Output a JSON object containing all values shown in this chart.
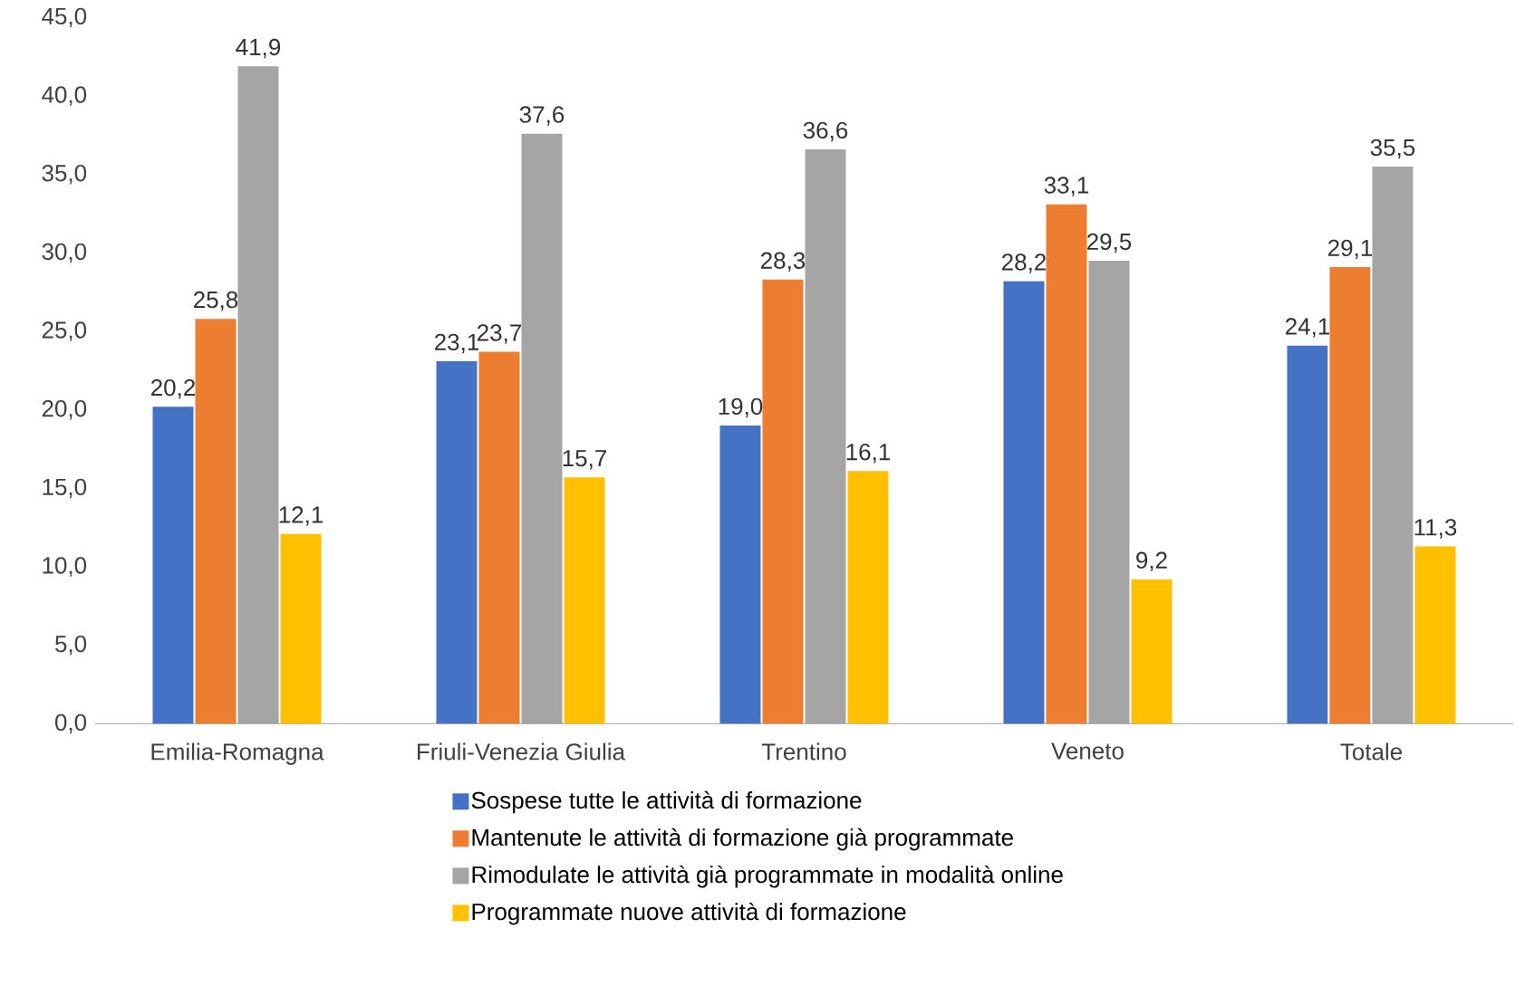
{
  "chart_data": {
    "type": "bar",
    "categories": [
      "Emilia-Romagna",
      "Friuli-Venezia Giulia",
      "Trentino",
      "Veneto",
      "Totale"
    ],
    "series": [
      {
        "name": "Sospese tutte le attività di formazione",
        "color": "#4472c4",
        "values": [
          20.2,
          23.1,
          19.0,
          28.2,
          24.1
        ],
        "value_labels": [
          "20,2",
          "23,1",
          "19,0",
          "28,2",
          "24,1"
        ]
      },
      {
        "name": "Mantenute le attività di formazione già programmate",
        "color": "#ed7d31",
        "values": [
          25.8,
          23.7,
          28.3,
          33.1,
          29.1
        ],
        "value_labels": [
          "25,8",
          "23,7",
          "28,3",
          "33,1",
          "29,1"
        ]
      },
      {
        "name": "Rimodulate le attività già programmate in modalità online",
        "color": "#a5a5a5",
        "values": [
          41.9,
          37.6,
          36.6,
          29.5,
          35.5
        ],
        "value_labels": [
          "41,9",
          "37,6",
          "36,6",
          "29,5",
          "35,5"
        ]
      },
      {
        "name": "Programmate nuove attività di formazione",
        "color": "#ffc000",
        "values": [
          12.1,
          15.7,
          16.1,
          9.2,
          11.3
        ],
        "value_labels": [
          "12,1",
          "15,7",
          "16,1",
          "9,2",
          "11,3"
        ]
      }
    ],
    "ylim": [
      0,
      45
    ],
    "yticks": [
      {
        "value": 0,
        "label": "0,0"
      },
      {
        "value": 5,
        "label": "5,0"
      },
      {
        "value": 10,
        "label": "10,0"
      },
      {
        "value": 15,
        "label": "15,0"
      },
      {
        "value": 20,
        "label": "20,0"
      },
      {
        "value": 25,
        "label": "25,0"
      },
      {
        "value": 30,
        "label": "30,0"
      },
      {
        "value": 35,
        "label": "35,0"
      },
      {
        "value": 40,
        "label": "40,0"
      },
      {
        "value": 45,
        "label": "45,0"
      }
    ],
    "grid": false,
    "legend": "bottom"
  }
}
